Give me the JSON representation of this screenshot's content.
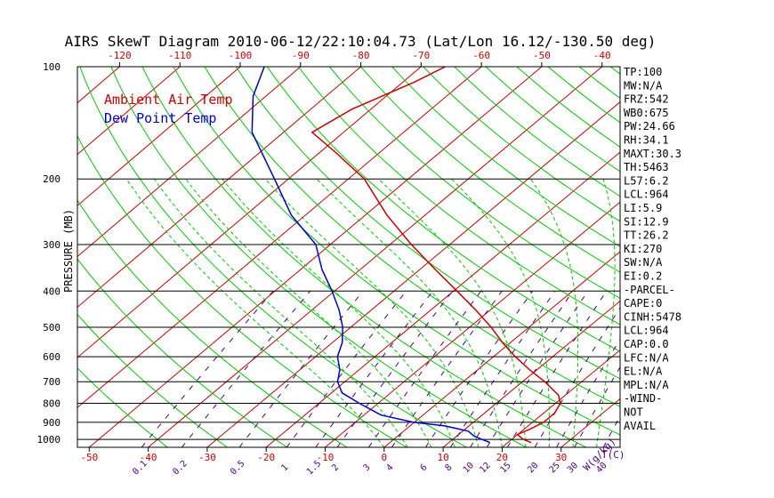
{
  "title": "AIRS SkewT Diagram 2010-06-12/22:10:04.73 (Lat/Lon 16.12/-130.50 deg)",
  "legend": [
    {
      "label": "Ambient Air Temp",
      "color": "#cc0000"
    },
    {
      "label": "Dew Point Temp",
      "color": "#0000cc"
    }
  ],
  "y_axis_label": "PRESSURE (MB)",
  "t_axis_label": "T(C)",
  "w_axis_label": "W(g/kg)",
  "stats": [
    "TP:100",
    "MW:N/A",
    "FRZ:542",
    "WB0:675",
    "PW:24.66",
    "RH:34.1",
    "MAXT:30.3",
    "TH:5463",
    "L57:6.2",
    "LCL:964",
    "LI:5.9",
    "SI:12.9",
    "TT:26.2",
    "KI:270",
    "SW:N/A",
    "EI:0.2",
    "-PARCEL-",
    "CAPE:0",
    "CINH:5478",
    "LCL:964",
    "CAP:0.0",
    "LFC:N/A",
    "EL:N/A",
    "MPL:N/A",
    "-WIND-",
    "NOT",
    "AVAIL"
  ],
  "colors": {
    "temp": "#cc0000",
    "dew": "#0000cc",
    "dry_adiabat": "#00cc00",
    "moist_adiabat": "#00cc00",
    "mixing_ratio": "#4b0082",
    "isotherm": "#cc0000",
    "isobar": "#000000",
    "top_tick_text": "#cc0000",
    "bottom_tick_text": "#cc0000",
    "mixing_tick_text": "#4b0082"
  },
  "chart_data": {
    "type": "line",
    "y_scale": "log",
    "ylim": [
      1050,
      100
    ],
    "xlim": [
      -52,
      40
    ],
    "skew_top_xlim": [
      -127,
      -37
    ],
    "pressure_ticks": [
      100,
      200,
      300,
      400,
      500,
      600,
      700,
      800,
      900,
      1000
    ],
    "isobar_lines": [
      200,
      300,
      400,
      500,
      600,
      700,
      800,
      900,
      1000,
      1050
    ],
    "top_temp_ticks": [
      -120,
      -110,
      -100,
      -90,
      -80,
      -70,
      -60,
      -50,
      -40
    ],
    "bottom_temp_ticks": [
      -50,
      -40,
      -30,
      -20,
      -10,
      0,
      10,
      20,
      30
    ],
    "mixing_ratio_labels": [
      "0.1",
      "0.2",
      "0.5",
      "1",
      "1.5",
      "2",
      "3",
      "4",
      "6",
      "8",
      "10",
      "12",
      "15",
      "20",
      "25",
      "30",
      "40"
    ],
    "mixing_ratio_values": [
      0.1,
      0.2,
      0.5,
      1,
      1.5,
      2,
      3,
      4,
      6,
      8,
      10,
      12,
      15,
      20,
      25,
      30,
      40
    ],
    "series": [
      {
        "name": "Ambient Air Temp",
        "points": [
          {
            "p": 1020,
            "t": 24
          },
          {
            "p": 1000,
            "t": 22
          },
          {
            "p": 970,
            "t": 20
          },
          {
            "p": 940,
            "t": 21
          },
          {
            "p": 900,
            "t": 22
          },
          {
            "p": 850,
            "t": 22
          },
          {
            "p": 800,
            "t": 21
          },
          {
            "p": 760,
            "t": 19
          },
          {
            "p": 700,
            "t": 14
          },
          {
            "p": 650,
            "t": 9
          },
          {
            "p": 600,
            "t": 4
          },
          {
            "p": 550,
            "t": -1
          },
          {
            "p": 500,
            "t": -6
          },
          {
            "p": 450,
            "t": -12
          },
          {
            "p": 400,
            "t": -19
          },
          {
            "p": 350,
            "t": -27
          },
          {
            "p": 300,
            "t": -36
          },
          {
            "p": 250,
            "t": -46
          },
          {
            "p": 200,
            "t": -57
          },
          {
            "p": 170,
            "t": -67
          },
          {
            "p": 150,
            "t": -75
          },
          {
            "p": 130,
            "t": -73
          },
          {
            "p": 110,
            "t": -68
          },
          {
            "p": 100,
            "t": -66
          }
        ]
      },
      {
        "name": "Dew Point Temp",
        "points": [
          {
            "p": 1020,
            "t": 17
          },
          {
            "p": 1000,
            "t": 15
          },
          {
            "p": 980,
            "t": 13
          },
          {
            "p": 950,
            "t": 11
          },
          {
            "p": 920,
            "t": 6
          },
          {
            "p": 900,
            "t": 0
          },
          {
            "p": 860,
            "t": -7
          },
          {
            "p": 800,
            "t": -13
          },
          {
            "p": 750,
            "t": -18
          },
          {
            "p": 700,
            "t": -21
          },
          {
            "p": 650,
            "t": -23
          },
          {
            "p": 600,
            "t": -26
          },
          {
            "p": 550,
            "t": -28
          },
          {
            "p": 500,
            "t": -31
          },
          {
            "p": 450,
            "t": -35
          },
          {
            "p": 400,
            "t": -40
          },
          {
            "p": 350,
            "t": -46
          },
          {
            "p": 300,
            "t": -52
          },
          {
            "p": 250,
            "t": -62
          },
          {
            "p": 200,
            "t": -72
          },
          {
            "p": 150,
            "t": -85
          },
          {
            "p": 120,
            "t": -92
          },
          {
            "p": 100,
            "t": -96
          }
        ]
      }
    ]
  }
}
